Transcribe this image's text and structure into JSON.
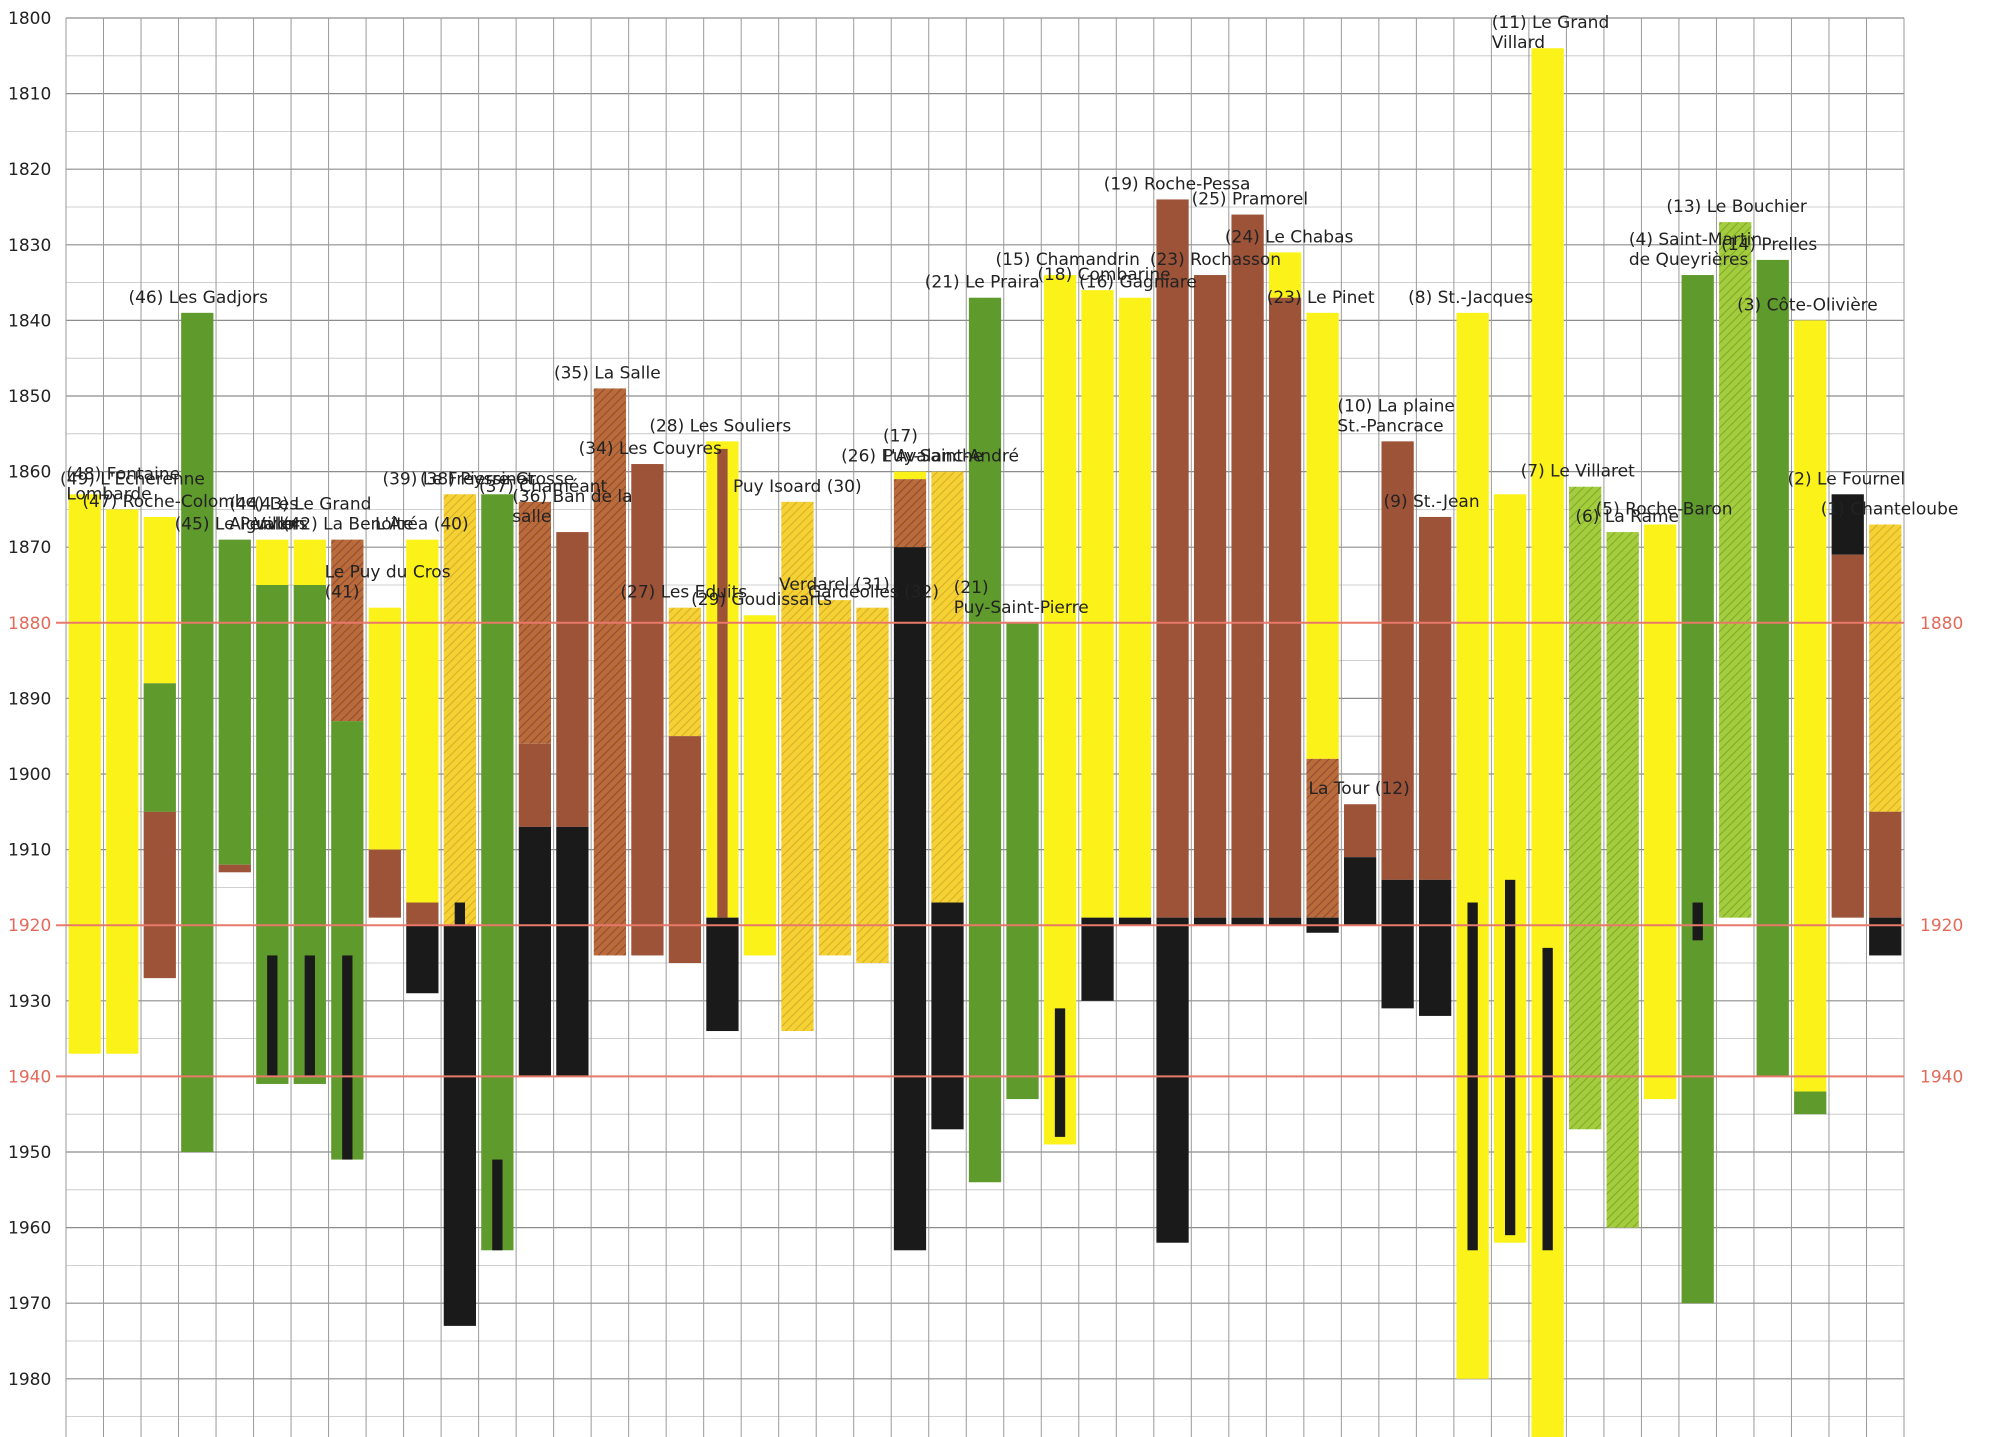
{
  "chart_data": {
    "type": "bar",
    "title": "",
    "xlabel": "",
    "ylabel": "",
    "ylim": [
      1800,
      1990
    ],
    "y_axis_inverted": true,
    "y_ticks": [
      "1800",
      "1810",
      "1820",
      "1830",
      "1840",
      "1850",
      "1860",
      "1870",
      "1880",
      "1890",
      "1900",
      "1910",
      "1920",
      "1930",
      "1940",
      "1950",
      "1960",
      "1970",
      "1980"
    ],
    "reference_lines": [
      {
        "year": 1880,
        "label": "1880"
      },
      {
        "year": 1920,
        "label": "1920"
      },
      {
        "year": 1940,
        "label": "1940"
      }
    ],
    "colors": {
      "yellow": "#fbf21a",
      "yellow_hatched": "#f1cc34",
      "green": "#5f9a2c",
      "green_light": "#9dc83a",
      "brown": "#9c5338",
      "brown_hatched": "#b66a3a",
      "black": "#1a1a1a",
      "grid": "#9a9a9a",
      "refline": "#e8796a"
    },
    "columns": [
      {
        "label": "(49) L'Echerenne",
        "segments": [
          {
            "from": 1863,
            "to": 1937,
            "color": "yellow"
          }
        ]
      },
      {
        "label": "(48) Fontaine Lombarde",
        "segments": [
          {
            "from": 1865,
            "to": 1937,
            "color": "yellow"
          }
        ]
      },
      {
        "label": "(47) Roche-Colombe",
        "segments": [
          {
            "from": 1866,
            "to": 1888,
            "color": "yellow"
          },
          {
            "from": 1888,
            "to": 1905,
            "color": "green"
          },
          {
            "from": 1905,
            "to": 1927,
            "color": "brown"
          }
        ]
      },
      {
        "label": "(46) Les Gadjors",
        "segments": [
          {
            "from": 1839,
            "to": 1950,
            "color": "green"
          }
        ]
      },
      {
        "label": "(45) Le Pervon",
        "segments": [
          {
            "from": 1869,
            "to": 1912,
            "color": "green"
          },
          {
            "from": 1912,
            "to": 1913,
            "color": "brown"
          }
        ]
      },
      {
        "label": "(44) Les Aiguillers",
        "segments": [
          {
            "from": 1869,
            "to": 1875,
            "color": "yellow"
          },
          {
            "from": 1875,
            "to": 1941,
            "color": "green"
          },
          {
            "from": 1924,
            "to": 1940,
            "color": "black",
            "narrow": true
          }
        ]
      },
      {
        "label": "(43) Le Grand Vallon",
        "segments": [
          {
            "from": 1869,
            "to": 1875,
            "color": "yellow"
          },
          {
            "from": 1875,
            "to": 1941,
            "color": "green"
          },
          {
            "from": 1924,
            "to": 1940,
            "color": "black",
            "narrow": true
          }
        ]
      },
      {
        "label": "(42) La Benoîte",
        "segments": [
          {
            "from": 1869,
            "to": 1893,
            "color": "brown_hatched"
          },
          {
            "from": 1893,
            "to": 1951,
            "color": "green"
          },
          {
            "from": 1924,
            "to": 1951,
            "color": "black",
            "narrow": true
          }
        ]
      },
      {
        "label": "Le Puy du Cros (41)",
        "segments": [
          {
            "from": 1878,
            "to": 1910,
            "color": "yellow"
          },
          {
            "from": 1910,
            "to": 1919,
            "color": "brown"
          }
        ]
      },
      {
        "label": "L'Aréa (40)",
        "segments": [
          {
            "from": 1869,
            "to": 1917,
            "color": "yellow"
          },
          {
            "from": 1917,
            "to": 1920,
            "color": "brown"
          },
          {
            "from": 1920,
            "to": 1929,
            "color": "black"
          }
        ]
      },
      {
        "label": "(39) Le Freyssinet",
        "segments": [
          {
            "from": 1863,
            "to": 1920,
            "color": "yellow_hatched"
          },
          {
            "from": 1917,
            "to": 1920,
            "color": "black",
            "narrow": true
          },
          {
            "from": 1920,
            "to": 1973,
            "color": "black"
          }
        ]
      },
      {
        "label": "(38) Pierre-Grosse",
        "segments": [
          {
            "from": 1863,
            "to": 1963,
            "color": "green"
          },
          {
            "from": 1951,
            "to": 1963,
            "color": "black",
            "narrow": true
          }
        ]
      },
      {
        "label": "(37) Chaméant",
        "segments": [
          {
            "from": 1864,
            "to": 1896,
            "color": "brown_hatched"
          },
          {
            "from": 1896,
            "to": 1907,
            "color": "brown"
          },
          {
            "from": 1907,
            "to": 1940,
            "color": "black"
          }
        ]
      },
      {
        "label": "(36) Ban de la salle",
        "segments": [
          {
            "from": 1868,
            "to": 1907,
            "color": "brown"
          },
          {
            "from": 1907,
            "to": 1940,
            "color": "black"
          }
        ]
      },
      {
        "label": "(35) La Salle",
        "segments": [
          {
            "from": 1849,
            "to": 1924,
            "color": "brown_hatched"
          }
        ]
      },
      {
        "label": "(34) Les Couyres",
        "segments": [
          {
            "from": 1859,
            "to": 1924,
            "color": "brown"
          }
        ]
      },
      {
        "label": "(27) Les Eduits",
        "segments": [
          {
            "from": 1878,
            "to": 1895,
            "color": "yellow_hatched"
          },
          {
            "from": 1895,
            "to": 1925,
            "color": "brown"
          }
        ]
      },
      {
        "label": "(28) Les Souliers",
        "segments": [
          {
            "from": 1856,
            "to": 1919,
            "color": "yellow"
          },
          {
            "from": 1857,
            "to": 1919,
            "color": "brown",
            "narrow": true
          },
          {
            "from": 1919,
            "to": 1934,
            "color": "black"
          }
        ]
      },
      {
        "label": "(29) Goudissarts",
        "segments": [
          {
            "from": 1879,
            "to": 1924,
            "color": "yellow"
          }
        ]
      },
      {
        "label": "Puy Isoard (30)",
        "segments": [
          {
            "from": 1864,
            "to": 1934,
            "color": "yellow_hatched"
          }
        ]
      },
      {
        "label": "Verdarel (31)",
        "segments": [
          {
            "from": 1877,
            "to": 1924,
            "color": "yellow_hatched"
          }
        ]
      },
      {
        "label": "Gardéolles (32)",
        "segments": [
          {
            "from": 1878,
            "to": 1925,
            "color": "yellow_hatched"
          }
        ]
      },
      {
        "label": "(26) L'Avalanche",
        "segments": [
          {
            "from": 1860,
            "to": 1861,
            "color": "yellow"
          },
          {
            "from": 1861,
            "to": 1870,
            "color": "brown_hatched"
          },
          {
            "from": 1870,
            "to": 1963,
            "color": "black"
          }
        ]
      },
      {
        "label": "(17) Puy-Saint-André",
        "segments": [
          {
            "from": 1860,
            "to": 1917,
            "color": "yellow_hatched"
          },
          {
            "from": 1917,
            "to": 1947,
            "color": "black"
          }
        ]
      },
      {
        "label": "(21) Le Praira",
        "segments": [
          {
            "from": 1837,
            "to": 1954,
            "color": "green"
          }
        ]
      },
      {
        "label": "(21) Puy-Saint-Pierre",
        "segments": [
          {
            "from": 1880,
            "to": 1943,
            "color": "green"
          }
        ]
      },
      {
        "label": "(15) Chamandrin",
        "segments": [
          {
            "from": 1834,
            "to": 1949,
            "color": "yellow"
          },
          {
            "from": 1931,
            "to": 1948,
            "color": "black",
            "narrow": true
          }
        ]
      },
      {
        "label": "(18) Combarine",
        "segments": [
          {
            "from": 1836,
            "to": 1919,
            "color": "yellow"
          },
          {
            "from": 1919,
            "to": 1930,
            "color": "black"
          }
        ]
      },
      {
        "label": "(16) Gagniare",
        "segments": [
          {
            "from": 1837,
            "to": 1919,
            "color": "yellow"
          },
          {
            "from": 1919,
            "to": 1920,
            "color": "black"
          }
        ]
      },
      {
        "label": "(19) Roche-Pessa",
        "segments": [
          {
            "from": 1824,
            "to": 1919,
            "color": "brown"
          },
          {
            "from": 1919,
            "to": 1962,
            "color": "black"
          }
        ]
      },
      {
        "label": "(23) Rochasson",
        "segments": [
          {
            "from": 1834,
            "to": 1919,
            "color": "brown"
          },
          {
            "from": 1919,
            "to": 1920,
            "color": "black"
          }
        ]
      },
      {
        "label": "(25) Pramorel",
        "segments": [
          {
            "from": 1826,
            "to": 1919,
            "color": "brown"
          },
          {
            "from": 1919,
            "to": 1920,
            "color": "black"
          }
        ]
      },
      {
        "label": "(24) Le Chabas",
        "segments": [
          {
            "from": 1831,
            "to": 1837,
            "color": "yellow"
          },
          {
            "from": 1837,
            "to": 1919,
            "color": "brown"
          },
          {
            "from": 1919,
            "to": 1920,
            "color": "black"
          }
        ]
      },
      {
        "label": "(23) Le Pinet",
        "segments": [
          {
            "from": 1839,
            "to": 1898,
            "color": "yellow"
          },
          {
            "from": 1898,
            "to": 1919,
            "color": "brown_hatched"
          },
          {
            "from": 1919,
            "to": 1921,
            "color": "black"
          }
        ]
      },
      {
        "label": "La Tour (12)",
        "segments": [
          {
            "from": 1904,
            "to": 1911,
            "color": "brown"
          },
          {
            "from": 1911,
            "to": 1920,
            "color": "black"
          }
        ]
      },
      {
        "label": "(10) La plaine St.-Pancrace",
        "segments": [
          {
            "from": 1856,
            "to": 1914,
            "color": "brown"
          },
          {
            "from": 1914,
            "to": 1931,
            "color": "black"
          }
        ]
      },
      {
        "label": "(9) St.-Jean",
        "segments": [
          {
            "from": 1866,
            "to": 1914,
            "color": "brown"
          },
          {
            "from": 1914,
            "to": 1932,
            "color": "black"
          }
        ]
      },
      {
        "label": "(8) St.-Jacques",
        "segments": [
          {
            "from": 1839,
            "to": 1980,
            "color": "yellow"
          },
          {
            "from": 1917,
            "to": 1963,
            "color": "black",
            "narrow": true
          }
        ]
      },
      {
        "label": "",
        "segments": [
          {
            "from": 1863,
            "to": 1962,
            "color": "yellow"
          },
          {
            "from": 1914,
            "to": 1961,
            "color": "black",
            "narrow": true
          }
        ]
      },
      {
        "label": "(11) Le Grand Villard",
        "segments": [
          {
            "from": 1804,
            "to": 1988,
            "color": "yellow"
          },
          {
            "from": 1923,
            "to": 1963,
            "color": "black",
            "narrow": true
          }
        ]
      },
      {
        "label": "(7) Le Villaret",
        "segments": [
          {
            "from": 1862,
            "to": 1947,
            "color": "green_light"
          }
        ]
      },
      {
        "label": "(6) La Rame",
        "segments": [
          {
            "from": 1868,
            "to": 1960,
            "color": "green_light"
          }
        ]
      },
      {
        "label": "(5) Roche-Baron",
        "segments": [
          {
            "from": 1867,
            "to": 1943,
            "color": "yellow"
          }
        ]
      },
      {
        "label": "(4) Saint-Martin de Queyrières",
        "segments": [
          {
            "from": 1834,
            "to": 1970,
            "color": "green"
          },
          {
            "from": 1917,
            "to": 1922,
            "color": "black",
            "narrow": true
          }
        ]
      },
      {
        "label": "(13) Le Bouchier",
        "segments": [
          {
            "from": 1827,
            "to": 1919,
            "color": "green_light"
          }
        ]
      },
      {
        "label": "(14) Prelles",
        "segments": [
          {
            "from": 1832,
            "to": 1940,
            "color": "green"
          }
        ]
      },
      {
        "label": "(3) Côte-Olivière",
        "segments": [
          {
            "from": 1840,
            "to": 1942,
            "color": "yellow"
          },
          {
            "from": 1942,
            "to": 1945,
            "color": "green"
          }
        ]
      },
      {
        "label": "(2) Le Fournel",
        "segments": [
          {
            "from": 1863,
            "to": 1871,
            "color": "black"
          },
          {
            "from": 1871,
            "to": 1919,
            "color": "brown"
          }
        ]
      },
      {
        "label": "(1) Chanteloube",
        "segments": [
          {
            "from": 1867,
            "to": 1905,
            "color": "yellow_hatched"
          },
          {
            "from": 1905,
            "to": 1919,
            "color": "brown"
          },
          {
            "from": 1919,
            "to": 1920,
            "color": "black"
          },
          {
            "from": 1920,
            "to": 1924,
            "color": "black"
          }
        ]
      }
    ]
  }
}
